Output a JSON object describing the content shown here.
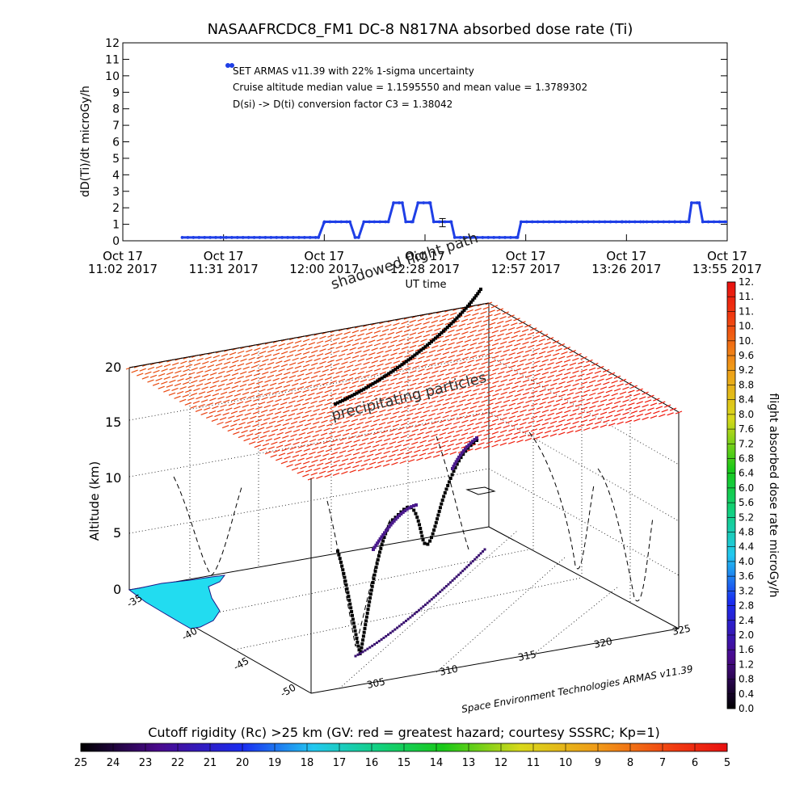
{
  "title": "NASAAFRCDC8_FM1 DC-8    N817NA absorbed dose rate (Ti)",
  "chart_data": [
    {
      "type": "line",
      "title": "NASAAFRCDC8_FM1 DC-8    N817NA absorbed dose rate (Ti)",
      "xlabel": "UT time",
      "ylabel": "dD(Ti)/dt microGy/h",
      "ylim": [
        0,
        12
      ],
      "yticks": [
        "0",
        "1",
        "2",
        "3",
        "4",
        "5",
        "6",
        "7",
        "8",
        "9",
        "10",
        "11",
        "12"
      ],
      "xticks": [
        {
          "top": "Oct 17",
          "bottom": "11:02 2017"
        },
        {
          "top": "Oct 17",
          "bottom": "11:31 2017"
        },
        {
          "top": "Oct 17",
          "bottom": "12:00 2017"
        },
        {
          "top": "Oct 17",
          "bottom": "12:28 2017"
        },
        {
          "top": "Oct 17",
          "bottom": "12:57 2017"
        },
        {
          "top": "Oct 17",
          "bottom": "13:26 2017"
        },
        {
          "top": "Oct 17",
          "bottom": "13:55 2017"
        }
      ],
      "xlim_minutes_after_1102": [
        0,
        173
      ],
      "series": [
        {
          "color": "#1f3fe6",
          "x": [
            17,
            28,
            56,
            57.7,
            65,
            66.5,
            67.5,
            69,
            72,
            76,
            77.5,
            80,
            81,
            83,
            84.5,
            88,
            89,
            94,
            95,
            113,
            114,
            143,
            144,
            145,
            149,
            150,
            158,
            162,
            162.8,
            165,
            166,
            173
          ],
          "y": [
            0.2,
            0.2,
            0.2,
            1.15,
            1.15,
            0.2,
            0.2,
            1.15,
            1.15,
            1.15,
            2.3,
            2.3,
            1.15,
            1.15,
            2.3,
            2.3,
            1.15,
            1.15,
            0.2,
            0.2,
            1.15,
            1.15,
            1.15,
            1.15,
            1.15,
            1.15,
            1.15,
            1.15,
            2.3,
            2.3,
            1.15,
            1.15
          ]
        }
      ],
      "error_bar": {
        "x": 91.5,
        "y": 1.1,
        "err": 0.25
      },
      "legend_marker_color": "#1f3fe6",
      "annotations": [
        "SET ARMAS v11.39 with 22% 1-sigma uncertainty",
        "Cruise altitude median value = 1.1595550 and mean value = 1.3789302",
        "D(si) -> D(ti) conversion factor C3 = 1.38042"
      ]
    },
    {
      "type": "scatter",
      "title": "",
      "zlabel": "Altitude (km)",
      "zticks": [
        "0",
        "5",
        "10",
        "15",
        "20"
      ],
      "lat_ticks": [
        "-35",
        "-40",
        "-45",
        "-50"
      ],
      "lon_ticks": [
        "305",
        "310",
        "315",
        "320",
        "325"
      ],
      "labels": [
        "shadowed flight path",
        "precipitating particles"
      ],
      "credit": "Space Environment Technologies ARMAS v11.39",
      "colorbar": {
        "label": "flight absorbed dose rate microGy/h",
        "ticks": [
          "0.0",
          "0.4",
          "0.8",
          "1.2",
          "1.6",
          "2.0",
          "2.4",
          "2.8",
          "3.2",
          "3.6",
          "4.0",
          "4.4",
          "4.8",
          "5.2",
          "5.6",
          "6.0",
          "6.4",
          "6.8",
          "7.2",
          "7.6",
          "8.0",
          "8.4",
          "8.8",
          "9.2",
          "9.6",
          "10.",
          "10.",
          "11.",
          "11.",
          "12."
        ]
      }
    },
    {
      "type": "heatmap",
      "title": "Cutoff rigidity (Rc) >25 km (GV: red = greatest hazard; courtesy SSSRC; Kp=1)",
      "ticks": [
        "25",
        "24",
        "23",
        "22",
        "21",
        "20",
        "19",
        "18",
        "17",
        "16",
        "15",
        "14",
        "13",
        "12",
        "11",
        "10",
        "9",
        "8",
        "7",
        "6",
        "5"
      ]
    }
  ]
}
